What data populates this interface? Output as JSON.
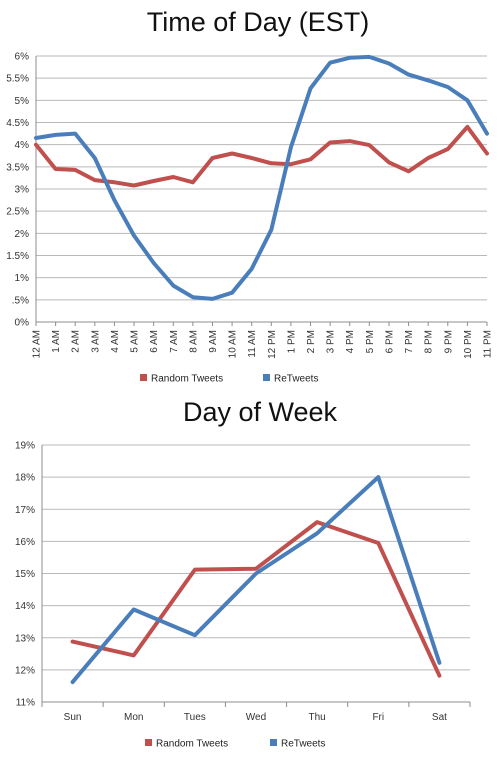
{
  "chart_data": [
    {
      "type": "line",
      "title": "Time of Day (EST)",
      "categories": [
        "12 AM",
        "1 AM",
        "2 AM",
        "3 AM",
        "4 AM",
        "5 AM",
        "6 AM",
        "7 AM",
        "8 AM",
        "9 AM",
        "10 AM",
        "11 AM",
        "12 PM",
        "1 PM",
        "2 PM",
        "3 PM",
        "4 PM",
        "5 PM",
        "6 PM",
        "7 PM",
        "8 PM",
        "9 PM",
        "10 PM",
        "11 PM"
      ],
      "y_ticks": [
        "0%",
        ".5%",
        "1%",
        "1.5%",
        "2%",
        "2.5%",
        "3%",
        "3.5%",
        "4%",
        "4.5%",
        "5%",
        "5.5%",
        "6%"
      ],
      "ylim": [
        0,
        6
      ],
      "grid": true,
      "legend_position": "bottom",
      "series": [
        {
          "name": "Random Tweets",
          "color": "#c0504d",
          "values": [
            4.0,
            3.45,
            3.43,
            3.2,
            3.15,
            3.08,
            3.18,
            3.27,
            3.15,
            3.7,
            3.8,
            3.7,
            3.58,
            3.56,
            3.67,
            4.05,
            4.08,
            3.99,
            3.6,
            3.4,
            3.7,
            3.9,
            4.4,
            3.8
          ]
        },
        {
          "name": "ReTweets",
          "color": "#4a7ebb",
          "values": [
            4.15,
            4.22,
            4.25,
            3.7,
            2.75,
            1.95,
            1.33,
            0.82,
            0.56,
            0.52,
            0.66,
            1.2,
            2.08,
            3.94,
            5.27,
            5.85,
            5.96,
            5.98,
            5.83,
            5.58,
            5.45,
            5.3,
            5.0,
            4.25
          ]
        }
      ]
    },
    {
      "type": "line",
      "title": "Day of Week",
      "categories": [
        "Sun",
        "Mon",
        "Tues",
        "Wed",
        "Thu",
        "Fri",
        "Sat"
      ],
      "y_ticks": [
        "11%",
        "12%",
        "13%",
        "14%",
        "15%",
        "16%",
        "17%",
        "18%",
        "19%"
      ],
      "ylim": [
        11,
        19
      ],
      "grid": true,
      "legend_position": "bottom",
      "series": [
        {
          "name": "Random Tweets",
          "color": "#c0504d",
          "values": [
            12.88,
            12.45,
            15.12,
            15.15,
            16.6,
            15.95,
            11.82
          ]
        },
        {
          "name": "ReTweets",
          "color": "#4a7ebb",
          "values": [
            11.62,
            13.88,
            13.08,
            15.0,
            16.25,
            18.0,
            12.22
          ]
        }
      ]
    }
  ]
}
